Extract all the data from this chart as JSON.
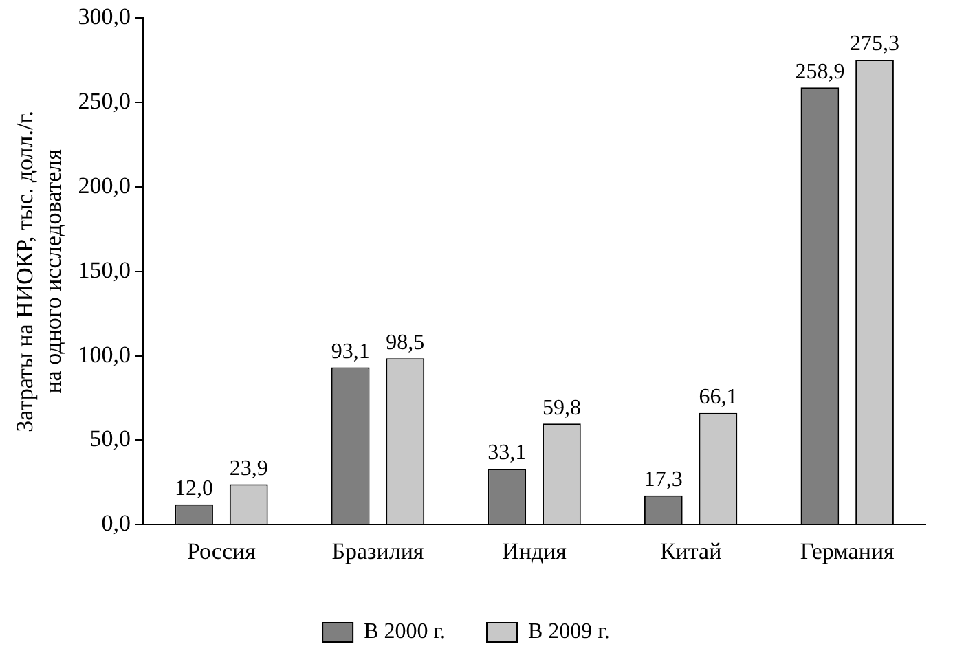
{
  "chart_data": {
    "type": "bar",
    "ylabel": "Затраты на НИОКР, тыс. долл./г.\nна одного исследователя",
    "categories": [
      "Россия",
      "Бразилия",
      "Индия",
      "Китай",
      "Германия"
    ],
    "series": [
      {
        "name": "В 2000 г.",
        "color": "#7f7f7f",
        "values": [
          12.0,
          93.1,
          33.1,
          17.3,
          258.9
        ],
        "value_labels": [
          "12,0",
          "93,1",
          "33,1",
          "17,3",
          "258,9"
        ]
      },
      {
        "name": "В 2009 г.",
        "color": "#c8c8c8",
        "values": [
          23.9,
          98.5,
          59.8,
          66.1,
          275.3
        ],
        "value_labels": [
          "23,9",
          "98,5",
          "59,8",
          "66,1",
          "275,3"
        ]
      }
    ],
    "ylim": [
      0,
      300
    ],
    "yticks": [
      {
        "value": 0,
        "label": "0,0"
      },
      {
        "value": 50,
        "label": "50,0"
      },
      {
        "value": 100,
        "label": "100,0"
      },
      {
        "value": 150,
        "label": "150,0"
      },
      {
        "value": 200,
        "label": "200,0"
      },
      {
        "value": 250,
        "label": "250,0"
      },
      {
        "value": 300,
        "label": "300,0"
      }
    ],
    "grid": false,
    "legend": "bottom"
  }
}
